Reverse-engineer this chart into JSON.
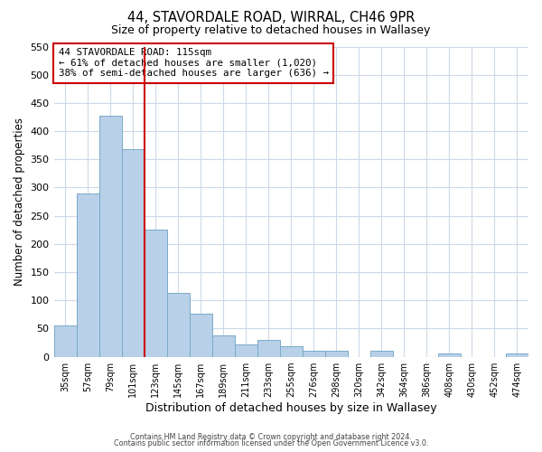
{
  "title": "44, STAVORDALE ROAD, WIRRAL, CH46 9PR",
  "subtitle": "Size of property relative to detached houses in Wallasey",
  "xlabel": "Distribution of detached houses by size in Wallasey",
  "ylabel": "Number of detached properties",
  "bar_labels": [
    "35sqm",
    "57sqm",
    "79sqm",
    "101sqm",
    "123sqm",
    "145sqm",
    "167sqm",
    "189sqm",
    "211sqm",
    "233sqm",
    "255sqm",
    "276sqm",
    "298sqm",
    "320sqm",
    "342sqm",
    "364sqm",
    "386sqm",
    "408sqm",
    "430sqm",
    "452sqm",
    "474sqm"
  ],
  "bar_values": [
    55,
    290,
    428,
    368,
    225,
    113,
    76,
    38,
    22,
    30,
    18,
    10,
    11,
    0,
    10,
    0,
    0,
    5,
    0,
    0,
    5
  ],
  "bar_color": "#b8d0e8",
  "bar_edgecolor": "#7aaac8",
  "vline_x": 4,
  "vline_color": "#cc0000",
  "annotation_title": "44 STAVORDALE ROAD: 115sqm",
  "annotation_line1": "← 61% of detached houses are smaller (1,020)",
  "annotation_line2": "38% of semi-detached houses are larger (636) →",
  "annotation_box_edgecolor": "#cc0000",
  "ylim": [
    0,
    550
  ],
  "yticks": [
    0,
    50,
    100,
    150,
    200,
    250,
    300,
    350,
    400,
    450,
    500,
    550
  ],
  "footer_line1": "Contains HM Land Registry data © Crown copyright and database right 2024.",
  "footer_line2": "Contains public sector information licensed under the Open Government Licence v3.0.",
  "background_color": "#ffffff",
  "grid_color": "#ccd9e8"
}
